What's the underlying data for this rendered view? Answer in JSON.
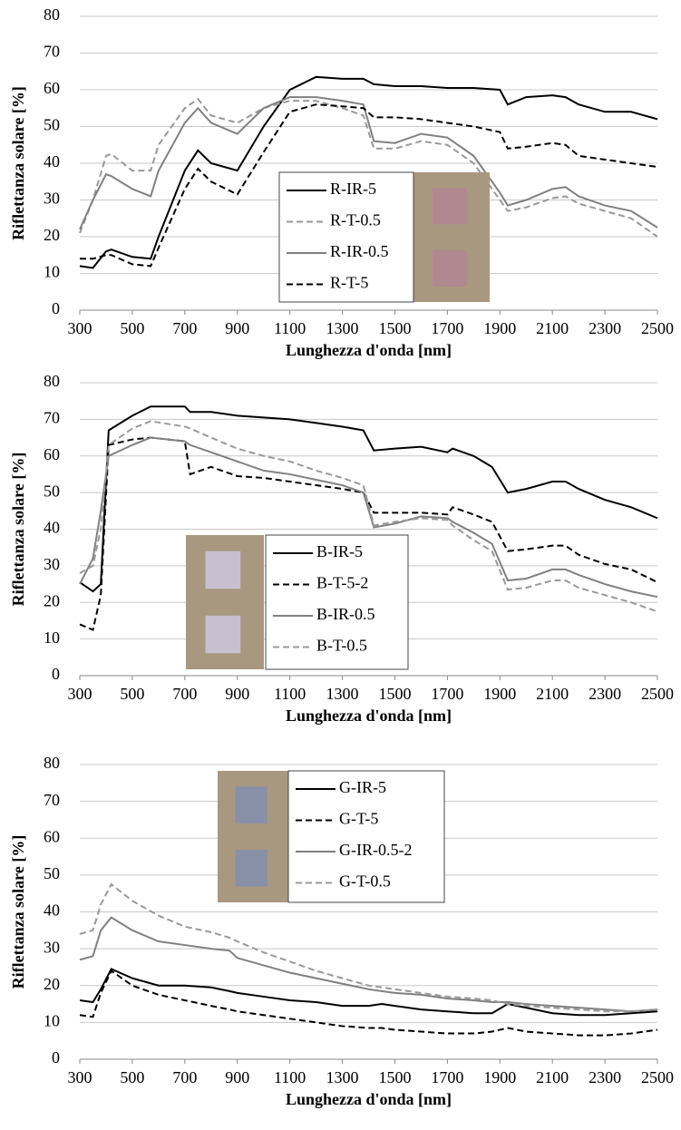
{
  "chart_data": [
    {
      "type": "line",
      "x_label": "Lunghezza d'onda [nm]",
      "y_label": "Riflettanza solare [%]",
      "x": [
        300,
        350,
        400,
        420,
        500,
        570,
        600,
        700,
        750,
        800,
        900,
        1000,
        1100,
        1200,
        1300,
        1380,
        1420,
        1500,
        1600,
        1700,
        1800,
        1900,
        1930,
        2000,
        2100,
        2150,
        2200,
        2300,
        2400,
        2500
      ],
      "xlim": [
        300,
        2500
      ],
      "xticks": [
        300,
        500,
        700,
        900,
        1100,
        1300,
        1500,
        1700,
        1900,
        2100,
        2300,
        2500
      ],
      "ylim": [
        0,
        80
      ],
      "yticks": [
        0,
        10,
        20,
        30,
        40,
        50,
        60,
        70,
        80
      ],
      "grid": true,
      "legend": "center",
      "series": [
        {
          "name": "R-IR-5",
          "color": "#000000",
          "dash": "solid",
          "values": [
            12,
            11.5,
            16,
            16.5,
            14.5,
            14,
            20,
            38,
            43.5,
            40,
            38,
            50,
            60,
            63.5,
            63,
            63,
            61.5,
            61,
            61,
            60.5,
            60.5,
            60,
            56,
            58,
            58.5,
            58,
            56,
            54,
            54,
            52
          ]
        },
        {
          "name": "R-T-0.5",
          "color": "#999999",
          "dash": "dashed",
          "values": [
            21,
            30,
            42,
            42.5,
            38,
            38,
            45,
            55,
            57.5,
            53,
            51,
            55,
            57,
            57,
            55,
            53,
            44,
            44,
            46,
            45,
            40,
            30,
            27,
            28,
            30.5,
            31,
            29,
            27,
            25,
            20
          ]
        },
        {
          "name": "R-IR-0.5",
          "color": "#808080",
          "dash": "solid",
          "values": [
            22,
            30,
            37,
            36.5,
            33,
            31,
            38,
            51,
            55,
            51,
            48,
            55,
            58,
            58,
            57,
            56,
            46,
            45.5,
            48,
            47,
            42,
            32,
            28.5,
            30,
            33,
            33.5,
            31,
            28.5,
            27,
            22.5
          ]
        },
        {
          "name": "R-T-5",
          "color": "#000000",
          "dash": "dashed",
          "values": [
            14,
            14,
            15,
            15,
            12.5,
            12,
            17,
            33,
            38.5,
            35,
            31.5,
            43,
            54,
            56,
            55.5,
            55,
            52.5,
            52.5,
            52,
            51,
            50,
            48.5,
            44,
            44.5,
            45.5,
            45,
            42,
            41,
            40,
            39
          ]
        }
      ]
    },
    {
      "type": "line",
      "x_label": "Lunghezza d'onda [nm]",
      "y_label": "Riflettanza solare [%]",
      "x": [
        300,
        350,
        380,
        410,
        500,
        570,
        700,
        720,
        800,
        900,
        1000,
        1100,
        1200,
        1300,
        1380,
        1420,
        1500,
        1600,
        1700,
        1720,
        1800,
        1870,
        1930,
        2000,
        2100,
        2150,
        2200,
        2300,
        2400,
        2500
      ],
      "xlim": [
        300,
        2500
      ],
      "xticks": [
        300,
        500,
        700,
        900,
        1100,
        1300,
        1500,
        1700,
        1900,
        2100,
        2300,
        2500
      ],
      "ylim": [
        0,
        80
      ],
      "yticks": [
        0,
        10,
        20,
        30,
        40,
        50,
        60,
        70,
        80
      ],
      "grid": true,
      "legend": "lower-center",
      "series": [
        {
          "name": "B-IR-5",
          "color": "#000000",
          "dash": "solid",
          "values": [
            25.5,
            23,
            25,
            67,
            71,
            73.5,
            73.5,
            72,
            72,
            71,
            70.5,
            70,
            69,
            68,
            67,
            61.5,
            62,
            62.5,
            61,
            62,
            60,
            57,
            50,
            51,
            53,
            53,
            51,
            48,
            46,
            43
          ]
        },
        {
          "name": "B-T-5-2",
          "color": "#000000",
          "dash": "dashed",
          "values": [
            14,
            12.5,
            22,
            63,
            64.5,
            65,
            64,
            55,
            57,
            54.5,
            54,
            53,
            52,
            51,
            50,
            44.5,
            44.5,
            44.5,
            44,
            46,
            44,
            42,
            34,
            34.5,
            35.5,
            35.5,
            33,
            30.5,
            29,
            25.5
          ]
        },
        {
          "name": "B-IR-0.5",
          "color": "#808080",
          "dash": "solid",
          "values": [
            25,
            32,
            45,
            60,
            63,
            65,
            64,
            63,
            61,
            58.5,
            56,
            55,
            53.5,
            52,
            50,
            40.5,
            41.5,
            43.5,
            43,
            42,
            39,
            36,
            26,
            26.5,
            29,
            29,
            27.5,
            25,
            23,
            21.5
          ]
        },
        {
          "name": "B-T-0.5",
          "color": "#999999",
          "dash": "dashed",
          "values": [
            28,
            30,
            40,
            63,
            67.5,
            69.5,
            68,
            67.5,
            65,
            62,
            60,
            58.5,
            56,
            54,
            52,
            41,
            42,
            43,
            42.5,
            41,
            37,
            34,
            23.5,
            24,
            26,
            26,
            24,
            22,
            20,
            17.5
          ]
        }
      ]
    },
    {
      "type": "line",
      "x_label": "Lunghezza d'onda [nm]",
      "y_label": "Riflettanza solare [%]",
      "x": [
        300,
        350,
        380,
        420,
        500,
        600,
        700,
        800,
        870,
        900,
        1000,
        1100,
        1200,
        1300,
        1400,
        1450,
        1500,
        1600,
        1700,
        1800,
        1870,
        1930,
        2000,
        2100,
        2200,
        2300,
        2400,
        2500
      ],
      "xlim": [
        300,
        2500
      ],
      "xticks": [
        300,
        500,
        700,
        900,
        1100,
        1300,
        1500,
        1700,
        1900,
        2100,
        2300,
        2500
      ],
      "ylim": [
        0,
        80
      ],
      "yticks": [
        0,
        10,
        20,
        30,
        40,
        50,
        60,
        70,
        80
      ],
      "grid": true,
      "legend": "upper-center",
      "series": [
        {
          "name": "G-IR-5",
          "color": "#000000",
          "dash": "solid",
          "values": [
            16,
            15.5,
            19,
            24.5,
            22,
            20,
            20,
            19.5,
            18.5,
            18,
            17,
            16,
            15.5,
            14.5,
            14.5,
            15,
            14.5,
            13.5,
            13,
            12.5,
            12.5,
            15,
            14,
            12.5,
            12,
            12,
            12.5,
            13
          ]
        },
        {
          "name": "G-T-5",
          "color": "#000000",
          "dash": "dashed",
          "values": [
            12,
            11.5,
            18,
            24,
            20,
            17.5,
            16,
            14.5,
            13.5,
            13,
            12,
            11,
            10,
            9,
            8.5,
            8.5,
            8,
            7.5,
            7,
            7,
            7.5,
            8.5,
            7.5,
            7,
            6.5,
            6.5,
            7,
            8
          ]
        },
        {
          "name": "G-IR-0.5-2",
          "color": "#808080",
          "dash": "solid",
          "values": [
            27,
            28,
            35,
            38.5,
            35,
            32,
            31,
            30,
            29.5,
            27.5,
            25.5,
            23.5,
            22,
            20.5,
            19,
            18.5,
            18,
            17.5,
            16.5,
            16,
            15.5,
            15.5,
            15,
            14.5,
            14,
            13.5,
            13,
            13.5
          ]
        },
        {
          "name": "G-T-0.5",
          "color": "#999999",
          "dash": "dashed",
          "values": [
            34,
            35,
            42,
            47.5,
            43,
            39,
            36,
            34.5,
            33,
            32,
            29,
            26.5,
            24,
            22,
            20,
            19.5,
            19,
            18,
            17,
            16.5,
            16,
            15,
            14.5,
            14,
            13.5,
            13,
            13,
            13.5
          ]
        }
      ]
    }
  ]
}
